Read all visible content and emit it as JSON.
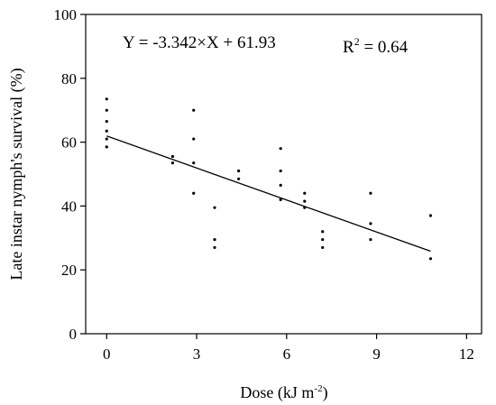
{
  "chart_data": {
    "type": "scatter",
    "xlabel": "Dose (kJ m",
    "xlabel_sup": "-2",
    "xlabel_end": ")",
    "ylabel": "Late instar nymph's survival (%)",
    "xlim": [
      -0.7,
      12.5
    ],
    "ylim": [
      0,
      100
    ],
    "xticks": [
      0,
      3,
      6,
      9,
      12
    ],
    "yticks": [
      0,
      20,
      40,
      60,
      80,
      100
    ],
    "xtick_labels": [
      "0",
      "3",
      "6",
      "9",
      "12"
    ],
    "ytick_labels": [
      "0",
      "20",
      "40",
      "60",
      "80",
      "100"
    ],
    "grid": false,
    "equation": "Y = -3.342×X + 61.93",
    "r2_prefix": "R",
    "r2_sup": "2",
    "r2_suffix": " = 0.64",
    "fit": {
      "slope": -3.342,
      "intercept": 61.93,
      "x_start": 0,
      "x_end": 10.8
    },
    "points": [
      {
        "x": 0,
        "y": 73.5
      },
      {
        "x": 0,
        "y": 70
      },
      {
        "x": 0,
        "y": 66.5
      },
      {
        "x": 0,
        "y": 63.5
      },
      {
        "x": 0,
        "y": 61
      },
      {
        "x": 0,
        "y": 58.5
      },
      {
        "x": 2.2,
        "y": 55.5
      },
      {
        "x": 2.2,
        "y": 53.5
      },
      {
        "x": 2.9,
        "y": 70
      },
      {
        "x": 2.9,
        "y": 61
      },
      {
        "x": 2.9,
        "y": 53.5
      },
      {
        "x": 2.9,
        "y": 44
      },
      {
        "x": 3.6,
        "y": 39.5
      },
      {
        "x": 3.6,
        "y": 29.5
      },
      {
        "x": 3.6,
        "y": 27
      },
      {
        "x": 4.4,
        "y": 51
      },
      {
        "x": 4.4,
        "y": 48.5
      },
      {
        "x": 5.8,
        "y": 58
      },
      {
        "x": 5.8,
        "y": 51
      },
      {
        "x": 5.8,
        "y": 46.5
      },
      {
        "x": 5.8,
        "y": 42
      },
      {
        "x": 6.6,
        "y": 44
      },
      {
        "x": 6.6,
        "y": 41.5
      },
      {
        "x": 6.6,
        "y": 39.5
      },
      {
        "x": 7.2,
        "y": 32
      },
      {
        "x": 7.2,
        "y": 29.5
      },
      {
        "x": 7.2,
        "y": 27
      },
      {
        "x": 8.8,
        "y": 44
      },
      {
        "x": 8.8,
        "y": 34.5
      },
      {
        "x": 8.8,
        "y": 29.5
      },
      {
        "x": 10.8,
        "y": 37
      },
      {
        "x": 10.8,
        "y": 23.5
      }
    ]
  }
}
